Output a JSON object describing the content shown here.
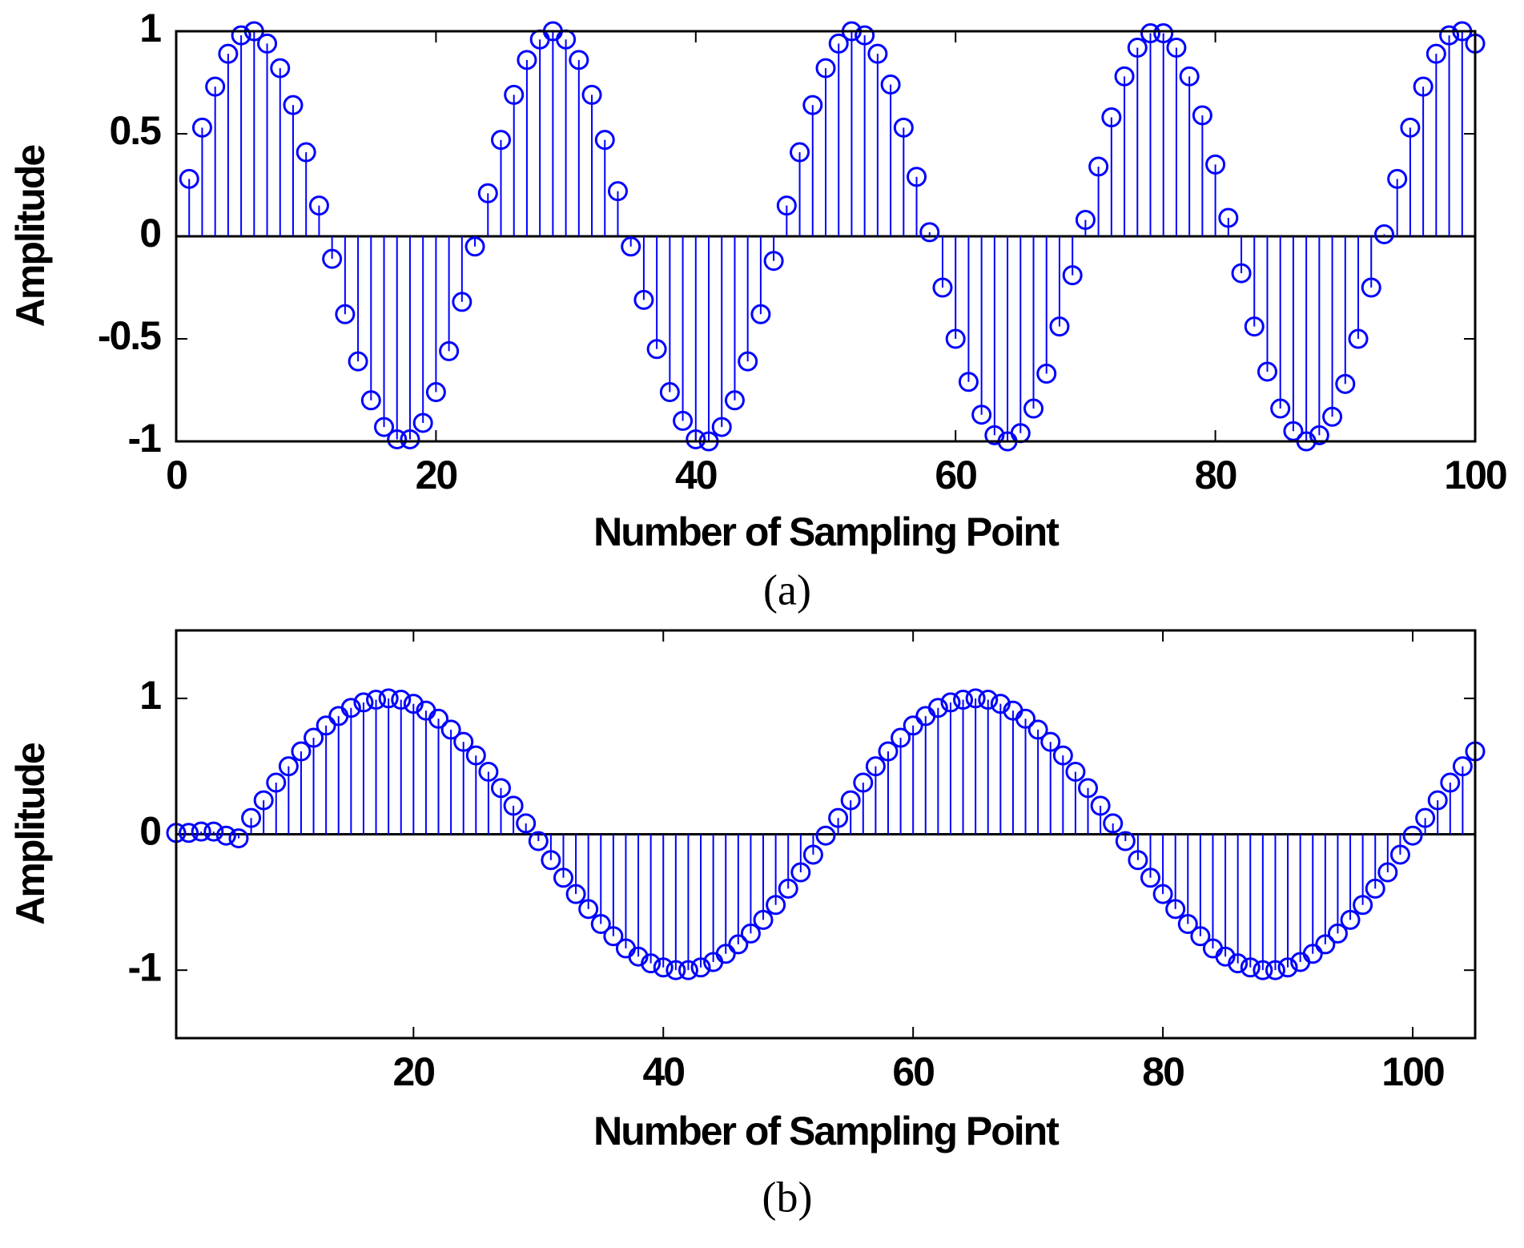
{
  "chart_data": [
    {
      "type": "stem",
      "color": "#0000ff",
      "xlabel": "Number of Sampling Point",
      "ylabel": "Amplitude",
      "caption": "(a)",
      "xlim": [
        0,
        100
      ],
      "ylim": [
        -1,
        1
      ],
      "xticks": [
        0,
        20,
        40,
        60,
        80,
        100
      ],
      "yticks": [
        -1,
        -0.5,
        0,
        0.5,
        1
      ],
      "x": [
        1,
        2,
        3,
        4,
        5,
        6,
        7,
        8,
        9,
        10,
        11,
        12,
        13,
        14,
        15,
        16,
        17,
        18,
        19,
        20,
        21,
        22,
        23,
        24,
        25,
        26,
        27,
        28,
        29,
        30,
        31,
        32,
        33,
        34,
        35,
        36,
        37,
        38,
        39,
        40,
        41,
        42,
        43,
        44,
        45,
        46,
        47,
        48,
        49,
        50,
        51,
        52,
        53,
        54,
        55,
        56,
        57,
        58,
        59,
        60,
        61,
        62,
        63,
        64,
        65,
        66,
        67,
        68,
        69,
        70,
        71,
        72,
        73,
        74,
        75,
        76,
        77,
        78,
        79,
        80,
        81,
        82,
        83,
        84,
        85,
        86,
        87,
        88,
        89,
        90,
        91,
        92,
        93,
        94,
        95,
        96,
        97,
        98,
        99,
        100
      ],
      "values": [
        0.28,
        0.53,
        0.73,
        0.89,
        0.98,
        1.0,
        0.94,
        0.82,
        0.64,
        0.41,
        0.15,
        -0.11,
        -0.38,
        -0.61,
        -0.8,
        -0.93,
        -0.99,
        -0.99,
        -0.91,
        -0.76,
        -0.56,
        -0.32,
        -0.05,
        0.21,
        0.47,
        0.69,
        0.86,
        0.96,
        1.0,
        0.96,
        0.86,
        0.69,
        0.47,
        0.22,
        -0.05,
        -0.31,
        -0.55,
        -0.76,
        -0.9,
        -0.99,
        -1.0,
        -0.93,
        -0.8,
        -0.61,
        -0.38,
        -0.12,
        0.15,
        0.41,
        0.64,
        0.82,
        0.94,
        1.0,
        0.98,
        0.89,
        0.74,
        0.53,
        0.29,
        0.02,
        -0.25,
        -0.5,
        -0.71,
        -0.87,
        -0.97,
        -1.0,
        -0.96,
        -0.84,
        -0.67,
        -0.44,
        -0.19,
        0.08,
        0.34,
        0.58,
        0.78,
        0.92,
        0.99,
        0.99,
        0.92,
        0.78,
        0.59,
        0.35,
        0.09,
        -0.18,
        -0.44,
        -0.66,
        -0.84,
        -0.95,
        -1.0,
        -0.97,
        -0.88,
        -0.72,
        -0.5,
        -0.25,
        0.01,
        0.28,
        0.53,
        0.73,
        0.89,
        0.98,
        1.0,
        0.94
      ]
    },
    {
      "type": "stem",
      "color": "#0000ff",
      "xlabel": "Number of Sampling Point",
      "ylabel": "Amplitude",
      "caption": "(b)",
      "xlim": [
        1,
        105
      ],
      "ylim": [
        -1.5,
        1.5
      ],
      "xticks": [
        20,
        40,
        60,
        80,
        100
      ],
      "yticks": [
        -1,
        0,
        1
      ],
      "x": [
        1,
        2,
        3,
        4,
        5,
        6,
        7,
        8,
        9,
        10,
        11,
        12,
        13,
        14,
        15,
        16,
        17,
        18,
        19,
        20,
        21,
        22,
        23,
        24,
        25,
        26,
        27,
        28,
        29,
        30,
        31,
        32,
        33,
        34,
        35,
        36,
        37,
        38,
        39,
        40,
        41,
        42,
        43,
        44,
        45,
        46,
        47,
        48,
        49,
        50,
        51,
        52,
        53,
        54,
        55,
        56,
        57,
        58,
        59,
        60,
        61,
        62,
        63,
        64,
        65,
        66,
        67,
        68,
        69,
        70,
        71,
        72,
        73,
        74,
        75,
        76,
        77,
        78,
        79,
        80,
        81,
        82,
        83,
        84,
        85,
        86,
        87,
        88,
        89,
        90,
        91,
        92,
        93,
        94,
        95,
        96,
        97,
        98,
        99,
        100,
        101,
        102,
        103,
        104,
        105
      ],
      "values": [
        0.01,
        0.01,
        0.02,
        0.02,
        -0.01,
        -0.03,
        0.12,
        0.25,
        0.38,
        0.5,
        0.61,
        0.71,
        0.8,
        0.87,
        0.93,
        0.97,
        0.99,
        1.0,
        0.99,
        0.96,
        0.91,
        0.85,
        0.77,
        0.68,
        0.58,
        0.46,
        0.34,
        0.21,
        0.08,
        -0.05,
        -0.19,
        -0.32,
        -0.44,
        -0.55,
        -0.66,
        -0.75,
        -0.84,
        -0.9,
        -0.95,
        -0.98,
        -1.0,
        -1.0,
        -0.98,
        -0.94,
        -0.88,
        -0.81,
        -0.73,
        -0.63,
        -0.52,
        -0.4,
        -0.28,
        -0.15,
        -0.01,
        0.12,
        0.25,
        0.38,
        0.5,
        0.61,
        0.71,
        0.8,
        0.87,
        0.93,
        0.97,
        0.99,
        1.0,
        0.99,
        0.96,
        0.91,
        0.85,
        0.77,
        0.68,
        0.58,
        0.46,
        0.34,
        0.21,
        0.08,
        -0.05,
        -0.19,
        -0.32,
        -0.44,
        -0.55,
        -0.66,
        -0.75,
        -0.84,
        -0.9,
        -0.95,
        -0.98,
        -1.0,
        -1.0,
        -0.98,
        -0.94,
        -0.88,
        -0.81,
        -0.73,
        -0.63,
        -0.52,
        -0.4,
        -0.28,
        -0.15,
        -0.01,
        0.12,
        0.25,
        0.38,
        0.5,
        0.61
      ]
    }
  ]
}
